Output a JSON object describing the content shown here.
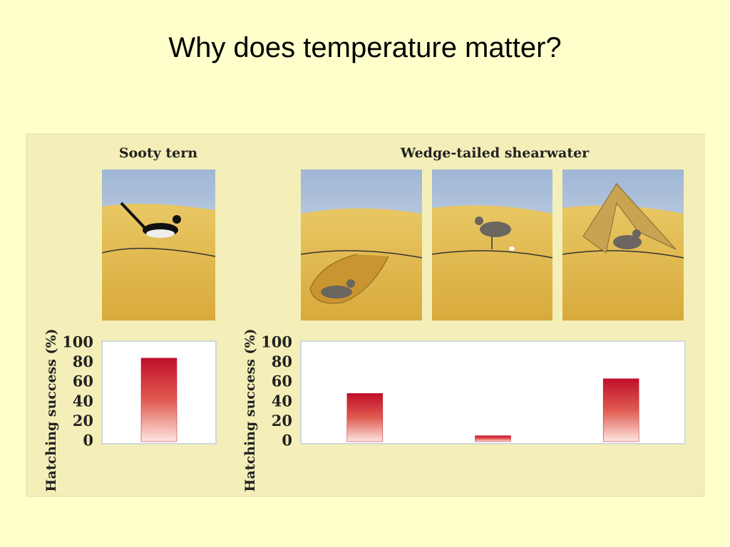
{
  "title": "Why does temperature matter?",
  "chart_data": [
    {
      "type": "bar",
      "title": "Sooty tern",
      "ylabel": "Hatching success (%)",
      "categories": [
        null
      ],
      "values": [
        85
      ],
      "color": "#c0102a",
      "ylim": [
        0,
        100
      ],
      "yticks": [
        0,
        20,
        40,
        60,
        80,
        100
      ]
    },
    {
      "type": "bar",
      "title": "Wedge-tailed shearwater",
      "ylabel": "Hatching success (%)",
      "categories": [
        null,
        null,
        null
      ],
      "values": [
        49,
        6,
        64
      ],
      "color": "#c0102a",
      "ylim": [
        0,
        100
      ],
      "yticks": [
        0,
        20,
        40,
        60,
        80,
        100
      ]
    }
  ]
}
